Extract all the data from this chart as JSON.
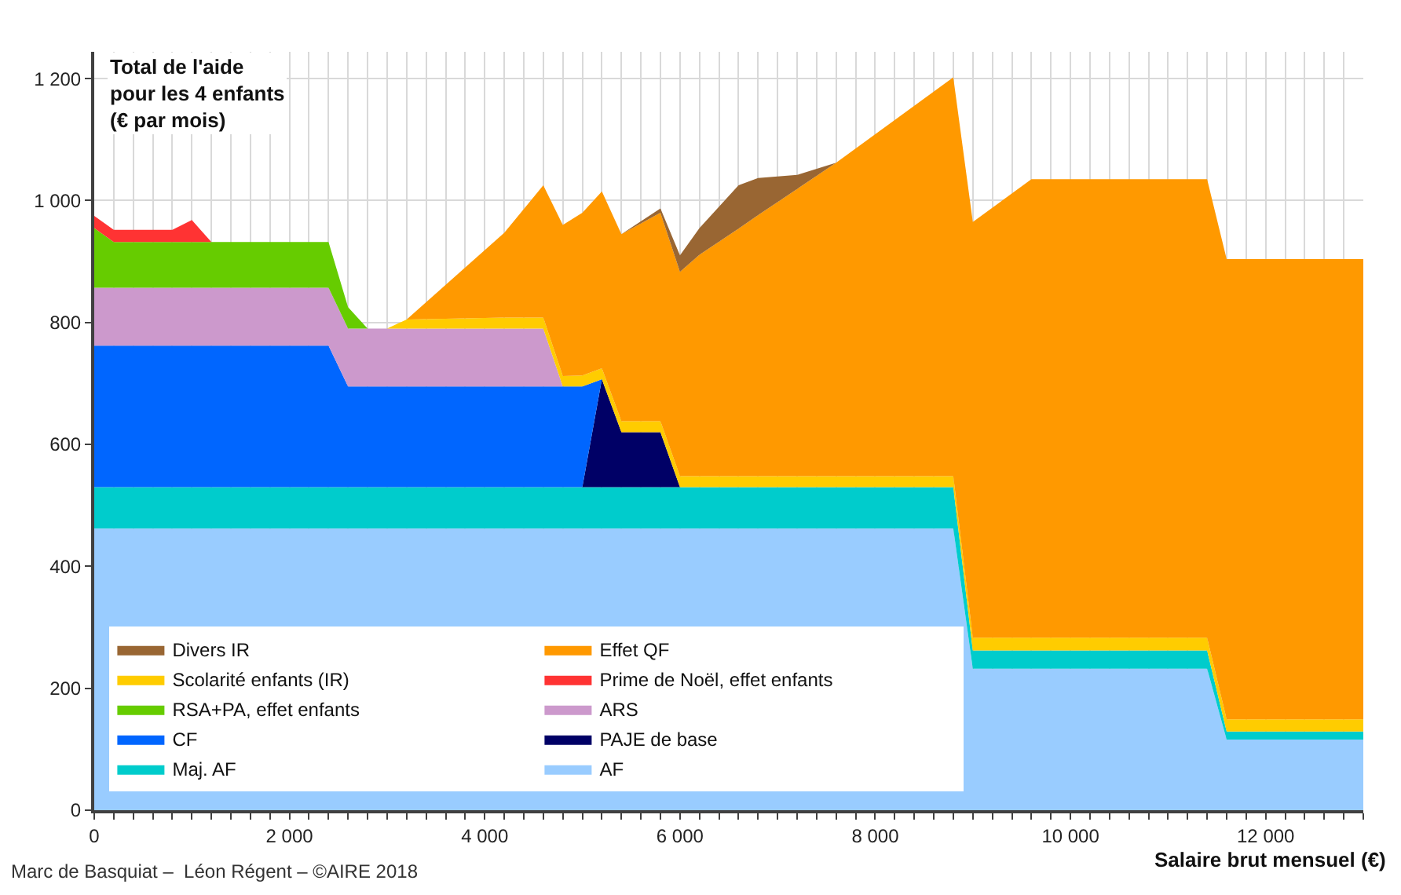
{
  "chart_data": {
    "type": "area",
    "stacked": true,
    "xlabel": "Salaire brut mensuel (€)",
    "ylabel": "Total de l'aide\npour les 4 enfants\n(€ par mois)",
    "annotations": [
      "Marc de Basquiat –  Léon Régent – ©AIRE 2018"
    ],
    "x": [
      0,
      200,
      800,
      1000,
      1200,
      2400,
      2600,
      2800,
      3000,
      3200,
      4200,
      4600,
      4800,
      5000,
      5200,
      5400,
      5800,
      6000,
      6200,
      6600,
      6800,
      7200,
      7600,
      8800,
      9000,
      9600,
      11400,
      11600,
      13000
    ],
    "series": [
      {
        "name": "AF",
        "color": "#99ccff",
        "values": [
          462,
          462,
          462,
          462,
          462,
          462,
          462,
          462,
          462,
          462,
          462,
          462,
          462,
          462,
          462,
          462,
          462,
          462,
          462,
          462,
          462,
          462,
          462,
          462,
          232,
          232,
          232,
          116,
          116
        ]
      },
      {
        "name": "Maj. AF",
        "color": "#00cccc",
        "values": [
          68,
          68,
          68,
          68,
          68,
          68,
          68,
          68,
          68,
          68,
          68,
          68,
          68,
          68,
          68,
          68,
          68,
          68,
          68,
          68,
          68,
          68,
          68,
          68,
          30,
          30,
          30,
          13,
          13
        ]
      },
      {
        "name": "PAJE de base",
        "color": "#000066",
        "values": [
          null,
          null,
          null,
          null,
          null,
          null,
          null,
          null,
          null,
          null,
          null,
          null,
          null,
          0,
          177,
          90,
          90,
          0,
          null,
          null,
          null,
          null,
          null,
          null,
          null,
          null,
          null,
          null,
          null
        ]
      },
      {
        "name": "CF",
        "color": "#0066ff",
        "values": [
          232,
          232,
          232,
          232,
          232,
          232,
          165,
          165,
          165,
          165,
          165,
          165,
          165,
          165,
          0,
          null,
          null,
          null,
          null,
          null,
          null,
          null,
          null,
          null,
          null,
          null,
          null,
          null,
          null
        ]
      },
      {
        "name": "ARS",
        "color": "#cc99cc",
        "values": [
          95,
          95,
          95,
          95,
          95,
          95,
          95,
          95,
          95,
          95,
          95,
          95,
          0,
          null,
          null,
          null,
          null,
          null,
          null,
          null,
          null,
          null,
          null,
          null,
          null,
          null,
          null,
          null,
          null
        ]
      },
      {
        "name": "RSA+PA, effet enfants",
        "color": "#66cc00",
        "values": [
          98,
          75,
          75,
          75,
          75,
          75,
          35,
          0,
          null,
          null,
          null,
          null,
          null,
          null,
          null,
          null,
          null,
          null,
          null,
          null,
          null,
          null,
          null,
          null,
          null,
          null,
          null,
          null,
          null
        ]
      },
      {
        "name": "Prime de Noël, effet enfants",
        "color": "#ff3333",
        "values": [
          20,
          20,
          20,
          36,
          0,
          null,
          null,
          null,
          null,
          null,
          null,
          null,
          null,
          null,
          null,
          null,
          null,
          null,
          null,
          null,
          null,
          null,
          null,
          null,
          null,
          null,
          null,
          null,
          null
        ]
      },
      {
        "name": "Scolarité enfants (IR)",
        "color": "#ffcc00",
        "values": [
          null,
          null,
          null,
          null,
          null,
          null,
          null,
          null,
          0,
          15,
          18,
          18,
          17,
          18,
          18,
          18,
          18,
          18,
          18,
          18,
          18,
          18,
          18,
          18,
          21,
          21,
          21,
          20,
          20
        ]
      },
      {
        "name": "Effet QF",
        "color": "#ff9900",
        "values": [
          null,
          null,
          null,
          null,
          null,
          null,
          null,
          null,
          null,
          0,
          139,
          217,
          248,
          267,
          290,
          307,
          342,
          335,
          363,
          406,
          428,
          471,
          514,
          654,
          682,
          752,
          752,
          755,
          755
        ]
      },
      {
        "name": "Divers IR",
        "color": "#996633",
        "values": [
          null,
          null,
          null,
          null,
          null,
          null,
          null,
          null,
          null,
          null,
          null,
          null,
          null,
          null,
          null,
          0,
          7,
          27,
          44,
          71,
          61,
          23,
          0,
          null,
          null,
          null,
          null,
          null,
          null
        ]
      }
    ],
    "xlim": [
      0,
      13000
    ],
    "xticks": [
      0,
      {
        "value": 200,
        "label": null
      },
      {
        "value": 400,
        "label": null
      },
      {
        "value": 600,
        "label": null
      },
      {
        "value": 800,
        "label": null
      },
      {
        "value": 1000,
        "label": null
      },
      {
        "value": 1200,
        "label": null
      },
      {
        "value": 1400,
        "label": null
      },
      {
        "value": 1600,
        "label": null
      },
      {
        "value": 1800,
        "label": null
      },
      {
        "value": 2000,
        "label": "2 000"
      },
      {
        "value": 2200,
        "label": null
      },
      {
        "value": 2400,
        "label": null
      },
      {
        "value": 2600,
        "label": null
      },
      {
        "value": 2800,
        "label": null
      },
      {
        "value": 3000,
        "label": null
      },
      {
        "value": 3200,
        "label": null
      },
      {
        "value": 3400,
        "label": null
      },
      {
        "value": 3600,
        "label": null
      },
      {
        "value": 3800,
        "label": null
      },
      {
        "value": 4000,
        "label": "4 000"
      },
      {
        "value": 4200,
        "label": null
      },
      {
        "value": 4400,
        "label": null
      },
      {
        "value": 4600,
        "label": null
      },
      {
        "value": 4800,
        "label": null
      },
      {
        "value": 5000,
        "label": null
      },
      {
        "value": 5200,
        "label": null
      },
      {
        "value": 5400,
        "label": null
      },
      {
        "value": 5600,
        "label": null
      },
      {
        "value": 5800,
        "label": null
      },
      {
        "value": 6000,
        "label": "6 000"
      },
      {
        "value": 6200,
        "label": null
      },
      {
        "value": 6400,
        "label": null
      },
      {
        "value": 6600,
        "label": null
      },
      {
        "value": 6800,
        "label": null
      },
      {
        "value": 7000,
        "label": null
      },
      {
        "value": 7200,
        "label": null
      },
      {
        "value": 7400,
        "label": null
      },
      {
        "value": 7600,
        "label": null
      },
      {
        "value": 7800,
        "label": null
      },
      {
        "value": 8000,
        "label": "8 000"
      },
      {
        "value": 8200,
        "label": null
      },
      {
        "value": 8400,
        "label": null
      },
      {
        "value": 8600,
        "label": null
      },
      {
        "value": 8800,
        "label": null
      },
      {
        "value": 9000,
        "label": null
      },
      {
        "value": 9200,
        "label": null
      },
      {
        "value": 9400,
        "label": null
      },
      {
        "value": 9600,
        "label": null
      },
      {
        "value": 9800,
        "label": null
      },
      {
        "value": 10000,
        "label": "10 000"
      },
      {
        "value": 10200,
        "label": null
      },
      {
        "value": 10400,
        "label": null
      },
      {
        "value": 10600,
        "label": null
      },
      {
        "value": 10800,
        "label": null
      },
      {
        "value": 11000,
        "label": null
      },
      {
        "value": 11200,
        "label": null
      },
      {
        "value": 11400,
        "label": null
      },
      {
        "value": 11600,
        "label": null
      },
      {
        "value": 11800,
        "label": null
      },
      {
        "value": 12000,
        "label": "12 000"
      },
      {
        "value": 12200,
        "label": null
      },
      {
        "value": 12400,
        "label": null
      },
      {
        "value": 12600,
        "label": null
      },
      {
        "value": 12800,
        "label": null
      },
      {
        "value": 13000,
        "label": null
      }
    ],
    "ylim": [
      0,
      1244
    ],
    "yticks": [
      0,
      200,
      400,
      600,
      800,
      {
        "value": 1000,
        "label": "1 000"
      },
      {
        "value": 1200,
        "label": "1 200"
      }
    ],
    "grid": true,
    "legend": "bottom left"
  }
}
